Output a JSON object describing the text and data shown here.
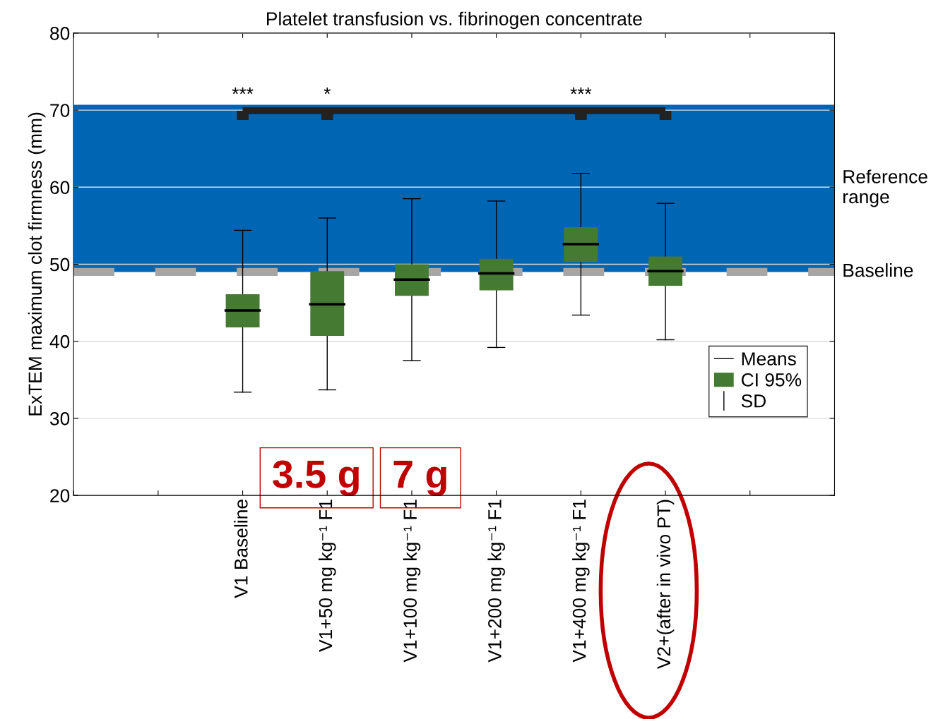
{
  "chart_data": {
    "type": "box",
    "title": "Platelet transfusion vs. fibrinogen concentrate",
    "ylabel": "ExTEM maximum clot firmness (mm)",
    "categories": [
      null,
      null,
      "V1 Baseline",
      "V1+50 mg kg⁻¹ F1",
      "V1+100 mg kg⁻¹ F1",
      "V1+200 mg kg⁻¹ F1",
      "V1+400 mg kg⁻¹ F1",
      "V2+(after in vivo PT)",
      null,
      null
    ],
    "series": [
      {
        "name": "CI 95%",
        "color": "#447a32",
        "boxes": [
          null,
          null,
          {
            "low": 33.4,
            "q1": 41.8,
            "median": 44.0,
            "q3": 46.1,
            "high": 54.4
          },
          {
            "low": 33.7,
            "q1": 40.7,
            "median": 44.8,
            "q3": 49.1,
            "high": 56.0
          },
          {
            "low": 37.5,
            "q1": 45.9,
            "median": 48.0,
            "q3": 50.0,
            "high": 58.5
          },
          {
            "low": 39.2,
            "q1": 46.6,
            "median": 48.8,
            "q3": 50.7,
            "high": 58.2
          },
          {
            "low": 43.4,
            "q1": 50.3,
            "median": 52.6,
            "q3": 54.8,
            "high": 61.8
          },
          {
            "low": 40.2,
            "q1": 47.2,
            "median": 49.1,
            "q3": 51.0,
            "high": 57.9
          },
          null,
          null
        ]
      }
    ],
    "ylim": [
      20,
      80
    ],
    "yticks": [
      20,
      30,
      40,
      50,
      60,
      70,
      80
    ],
    "bands": [
      {
        "axis": "y",
        "from": 49,
        "to": 70.7,
        "label": "Reference range",
        "color": "#0066b3"
      }
    ],
    "ref_lines": [
      {
        "axis": "y",
        "value": 49,
        "label": "Baseline",
        "color": "#a6a6a6",
        "line_style": "dashed"
      }
    ],
    "annotations": [
      "***",
      "*",
      "***",
      "3.5 g",
      "7 g",
      "Means",
      "SD"
    ],
    "grid": "y",
    "legend": "bottom right"
  }
}
